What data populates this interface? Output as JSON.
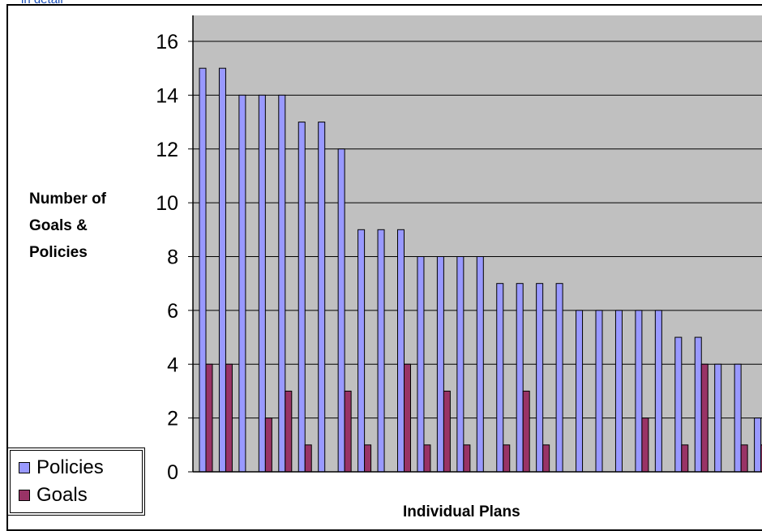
{
  "caption": "in detail",
  "colors": {
    "plot_background": "#c0c0c0",
    "policies": "#9999ff",
    "goals": "#993366",
    "gridline": "#000000"
  },
  "chart_data": {
    "type": "bar",
    "title": "",
    "xlabel": "Individual Plans",
    "ylabel": "Number of Goals & Policies",
    "ylim": [
      0,
      16
    ],
    "yticks": [
      0,
      2,
      4,
      6,
      8,
      10,
      12,
      14,
      16
    ],
    "grid": true,
    "legend_position": "bottom-left",
    "series": [
      {
        "name": "Policies",
        "values": [
          15,
          15,
          14,
          14,
          14,
          13,
          13,
          12,
          9,
          9,
          9,
          8,
          8,
          8,
          8,
          7,
          7,
          7,
          7,
          6,
          6,
          6,
          6,
          6,
          5,
          5,
          4,
          4,
          2
        ]
      },
      {
        "name": "Goals",
        "values": [
          4,
          4,
          0,
          2,
          3,
          1,
          0,
          3,
          1,
          0,
          4,
          1,
          3,
          1,
          0,
          1,
          3,
          1,
          0,
          0,
          0,
          0,
          2,
          0,
          1,
          4,
          0,
          1,
          1
        ]
      }
    ]
  }
}
